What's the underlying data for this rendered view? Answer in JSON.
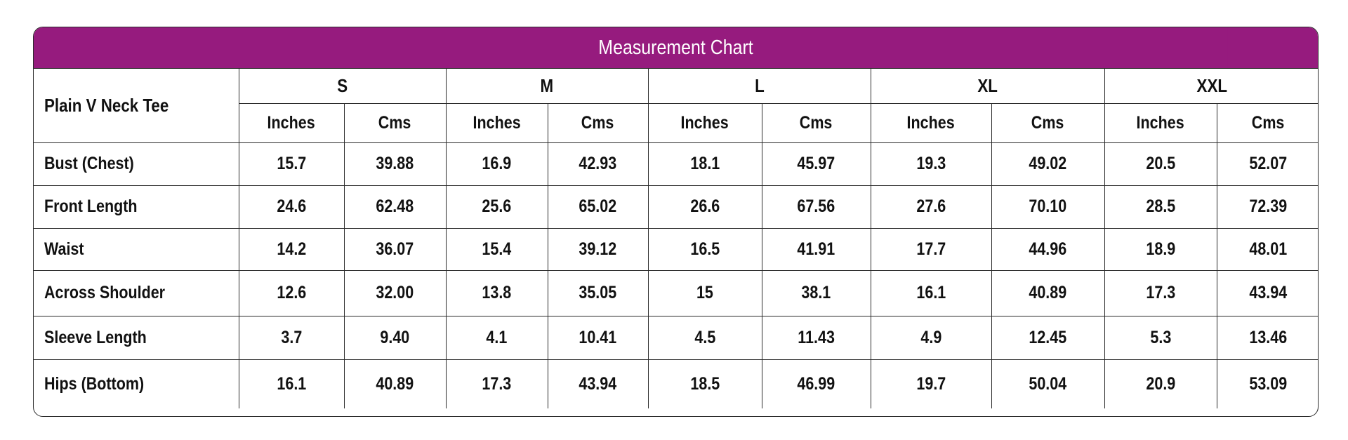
{
  "title": "Measurement Chart",
  "product": "Plain V Neck Tee",
  "sizes": [
    "S",
    "M",
    "L",
    "XL",
    "XXL"
  ],
  "units": [
    "Inches",
    "Cms"
  ],
  "rows": [
    {
      "label": "Bust (Chest)",
      "values": [
        "15.7",
        "39.88",
        "16.9",
        "42.93",
        "18.1",
        "45.97",
        "19.3",
        "49.02",
        "20.5",
        "52.07"
      ]
    },
    {
      "label": "Front Length",
      "values": [
        "24.6",
        "62.48",
        "25.6",
        "65.02",
        "26.6",
        "67.56",
        "27.6",
        "70.10",
        "28.5",
        "72.39"
      ]
    },
    {
      "label": "Waist",
      "values": [
        "14.2",
        "36.07",
        "15.4",
        "39.12",
        "16.5",
        "41.91",
        "17.7",
        "44.96",
        "18.9",
        "48.01"
      ]
    },
    {
      "label": "Across Shoulder",
      "values": [
        "12.6",
        "32.00",
        "13.8",
        "35.05",
        "15",
        "38.1",
        "16.1",
        "40.89",
        "17.3",
        "43.94"
      ]
    },
    {
      "label": "Sleeve Length",
      "values": [
        "3.7",
        "9.40",
        "4.1",
        "10.41",
        "4.5",
        "11.43",
        "4.9",
        "12.45",
        "5.3",
        "13.46"
      ]
    },
    {
      "label": "Hips (Bottom)",
      "values": [
        "16.1",
        "40.89",
        "17.3",
        "43.94",
        "18.5",
        "46.99",
        "19.7",
        "50.04",
        "20.9",
        "53.09"
      ]
    }
  ],
  "colors": {
    "header_bg": "#961b7e",
    "header_text": "#ffffff",
    "border": "#2a2a2a"
  }
}
